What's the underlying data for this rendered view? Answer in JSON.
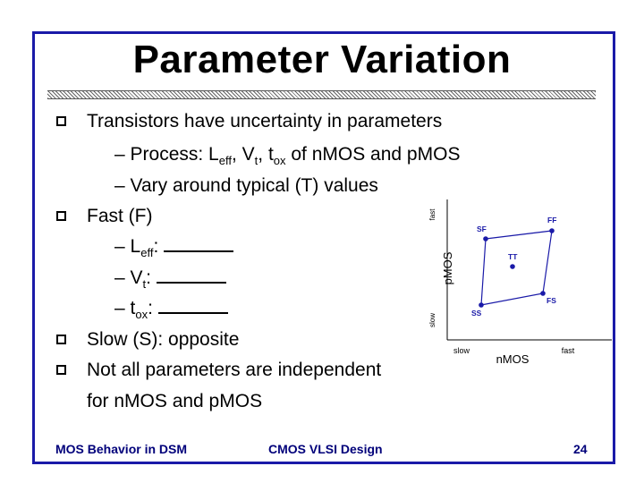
{
  "slide": {
    "title": "Parameter Variation",
    "bullets": [
      {
        "text": "Transistors have uncertainty in parameters"
      },
      {
        "text": "Fast (F)"
      },
      {
        "text": "Slow (S): opposite"
      },
      {
        "text": "Not all parameters are independent"
      },
      {
        "text": "for nMOS and pMOS"
      }
    ],
    "sub_process": {
      "dash": "–",
      "prefix": "Process: L",
      "sub1": "eff",
      "mid1": ", V",
      "sub2": "t",
      "mid2": ", t",
      "sub3": "ox",
      "suffix": " of nMOS and pMOS"
    },
    "sub_vary": {
      "dash": "–",
      "text": "Vary around typical (T) values"
    },
    "fast_items": [
      {
        "dash": "–",
        "main": "L",
        "sub": "eff",
        "colon": ":"
      },
      {
        "dash": "–",
        "main": "V",
        "sub": "t",
        "colon": ":"
      },
      {
        "dash": "–",
        "main": "t",
        "sub": "ox",
        "colon": ":"
      }
    ]
  },
  "diagram": {
    "y_label": "pMOS",
    "x_label": "nMOS",
    "y_fast": "fast",
    "y_slow": "slow",
    "x_slow": "slow",
    "x_fast": "fast",
    "corners": {
      "SF": "SF",
      "FF": "FF",
      "TT": "TT",
      "SS": "SS",
      "FS": "FS"
    },
    "accent": "#1a1aa8"
  },
  "footer": {
    "left": "MOS Behavior in DSM",
    "center": "CMOS VLSI Design",
    "page": "24"
  }
}
